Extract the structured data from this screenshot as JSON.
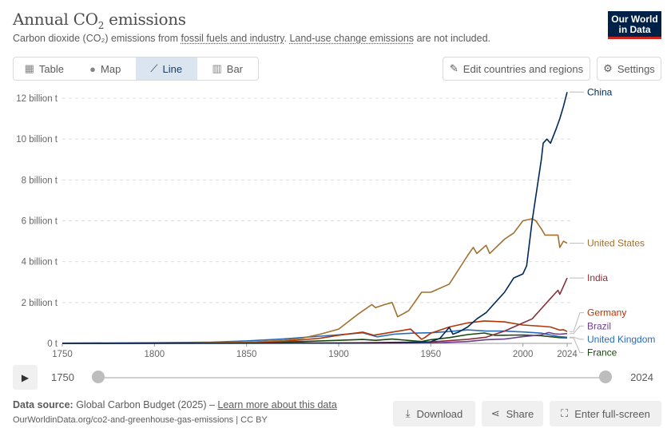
{
  "header": {
    "title_main": "Annual CO",
    "title_sub": "2",
    "title_end": " emissions",
    "subtitle_a": "Carbon dioxide (CO₂) emissions from ",
    "subtitle_link1": "fossil fuels and industry",
    "subtitle_b": ". ",
    "subtitle_link2": "Land-use change emissions",
    "subtitle_c": " are not included."
  },
  "logo": {
    "line1": "Our World",
    "line2": "in Data"
  },
  "tabs": [
    {
      "label": "Table",
      "icon": "table-icon"
    },
    {
      "label": "Map",
      "icon": "globe-icon"
    },
    {
      "label": "Line",
      "icon": "line-chart-icon",
      "active": true
    },
    {
      "label": "Bar",
      "icon": "bar-chart-icon"
    }
  ],
  "controls": {
    "edit_label": "Edit countries and regions",
    "settings_label": "Settings"
  },
  "timeline": {
    "start": "1750",
    "end": "2024",
    "start_value": 1750,
    "end_value": 2024,
    "min": 1750,
    "max": 2024
  },
  "footer": {
    "source_label": "Data source:",
    "source_text": " Global Carbon Budget (2025) – ",
    "learn_more": "Learn more about this data",
    "url": "OurWorldinData.org/co2-and-greenhouse-gas-emissions | CC BY",
    "download": "Download",
    "share": "Share",
    "fullscreen": "Enter full-screen"
  },
  "chart_data": {
    "type": "line",
    "xlim": [
      1750,
      2024
    ],
    "ylim": [
      0,
      12
    ],
    "y_unit": "billion t",
    "grid": true,
    "xticks": [
      {
        "value": 1750,
        "label": "1750"
      },
      {
        "value": 1800,
        "label": "1800"
      },
      {
        "value": 1850,
        "label": "1850"
      },
      {
        "value": 1900,
        "label": "1900"
      },
      {
        "value": 1950,
        "label": "1950"
      },
      {
        "value": 2000,
        "label": "2000"
      },
      {
        "value": 2024,
        "label": "2024"
      }
    ],
    "yticks": [
      {
        "value": 0,
        "label": "0 t"
      },
      {
        "value": 2,
        "label": "2 billion t"
      },
      {
        "value": 4,
        "label": "4 billion t"
      },
      {
        "value": 6,
        "label": "6 billion t"
      },
      {
        "value": 8,
        "label": "8 billion t"
      },
      {
        "value": 10,
        "label": "10 billion t"
      },
      {
        "value": 12,
        "label": "12 billion t"
      }
    ],
    "series": [
      {
        "name": "China",
        "color": "#00295b",
        "x": [
          1750,
          1900,
          1920,
          1940,
          1950,
          1955,
          1960,
          1962,
          1965,
          1970,
          1975,
          1980,
          1985,
          1990,
          1995,
          2000,
          2002,
          2005,
          2010,
          2011,
          2013,
          2015,
          2018,
          2020,
          2022,
          2024
        ],
        "y": [
          0,
          0.01,
          0.02,
          0.04,
          0.08,
          0.25,
          0.78,
          0.45,
          0.55,
          0.8,
          1.2,
          1.5,
          2.0,
          2.5,
          3.2,
          3.4,
          3.8,
          6.0,
          9.0,
          9.8,
          10.0,
          9.8,
          10.5,
          11.0,
          11.6,
          12.3
        ]
      },
      {
        "name": "United States",
        "color": "#a2702f",
        "x": [
          1750,
          1800,
          1850,
          1870,
          1880,
          1890,
          1900,
          1910,
          1918,
          1920,
          1925,
          1929,
          1932,
          1938,
          1945,
          1950,
          1960,
          1970,
          1973,
          1975,
          1980,
          1982,
          1990,
          1995,
          2000,
          2005,
          2007,
          2010,
          2012,
          2015,
          2019,
          2020,
          2022,
          2024
        ],
        "y": [
          0,
          0.01,
          0.05,
          0.15,
          0.25,
          0.45,
          0.7,
          1.4,
          1.9,
          1.75,
          1.9,
          2.0,
          1.3,
          1.6,
          2.5,
          2.5,
          2.9,
          4.3,
          4.7,
          4.4,
          4.8,
          4.4,
          5.1,
          5.4,
          6.0,
          6.1,
          6.0,
          5.6,
          5.3,
          5.3,
          5.3,
          4.7,
          5.0,
          4.9
        ]
      },
      {
        "name": "India",
        "color": "#883039",
        "x": [
          1750,
          1900,
          1950,
          1970,
          1980,
          1990,
          2000,
          2005,
          2010,
          2015,
          2019,
          2020,
          2022,
          2024
        ],
        "y": [
          0,
          0.02,
          0.07,
          0.2,
          0.3,
          0.6,
          1.0,
          1.2,
          1.7,
          2.2,
          2.6,
          2.4,
          2.8,
          3.2
        ]
      },
      {
        "name": "Germany",
        "color": "#b13507",
        "x": [
          1750,
          1800,
          1850,
          1870,
          1890,
          1900,
          1913,
          1919,
          1929,
          1939,
          1945,
          1947,
          1950,
          1960,
          1970,
          1979,
          1990,
          2000,
          2010,
          2015,
          2020,
          2022,
          2024
        ],
        "y": [
          0,
          0.01,
          0.03,
          0.1,
          0.25,
          0.4,
          0.55,
          0.4,
          0.55,
          0.7,
          0.2,
          0.3,
          0.5,
          0.8,
          1.0,
          1.1,
          1.05,
          0.9,
          0.84,
          0.8,
          0.65,
          0.67,
          0.58
        ]
      },
      {
        "name": "Brazil",
        "color": "#6d3e91",
        "x": [
          1750,
          1950,
          1970,
          1980,
          1990,
          2000,
          2010,
          2014,
          2017,
          2020,
          2024
        ],
        "y": [
          0,
          0.02,
          0.09,
          0.18,
          0.21,
          0.33,
          0.42,
          0.53,
          0.47,
          0.45,
          0.48
        ]
      },
      {
        "name": "United Kingdom",
        "color": "#286bbb",
        "x": [
          1750,
          1800,
          1830,
          1850,
          1870,
          1890,
          1900,
          1913,
          1921,
          1930,
          1940,
          1950,
          1960,
          1970,
          1980,
          1990,
          2000,
          2010,
          2015,
          2020,
          2024
        ],
        "y": [
          0.01,
          0.03,
          0.06,
          0.12,
          0.22,
          0.35,
          0.42,
          0.52,
          0.32,
          0.45,
          0.5,
          0.52,
          0.58,
          0.66,
          0.6,
          0.6,
          0.56,
          0.5,
          0.41,
          0.33,
          0.3
        ]
      },
      {
        "name": "France",
        "color": "#18470f",
        "x": [
          1750,
          1800,
          1850,
          1880,
          1900,
          1913,
          1920,
          1929,
          1945,
          1950,
          1960,
          1970,
          1979,
          1985,
          1990,
          2000,
          2010,
          2020,
          2024
        ],
        "y": [
          0,
          0.01,
          0.03,
          0.09,
          0.15,
          0.19,
          0.15,
          0.21,
          0.09,
          0.18,
          0.28,
          0.43,
          0.51,
          0.39,
          0.4,
          0.41,
          0.37,
          0.28,
          0.27
        ]
      }
    ],
    "labels": [
      {
        "name": "China",
        "value": 12.3,
        "label_value": 12.3
      },
      {
        "name": "United States",
        "value": 4.9,
        "label_value": 4.9
      },
      {
        "name": "India",
        "value": 3.2,
        "label_value": 3.2
      },
      {
        "name": "Germany",
        "value": 0.58,
        "label_value": 1.5
      },
      {
        "name": "Brazil",
        "value": 0.48,
        "label_value": 0.85
      },
      {
        "name": "United Kingdom",
        "value": 0.3,
        "label_value": 0.2
      },
      {
        "name": "France",
        "value": 0.27,
        "label_value": -0.45
      }
    ]
  }
}
